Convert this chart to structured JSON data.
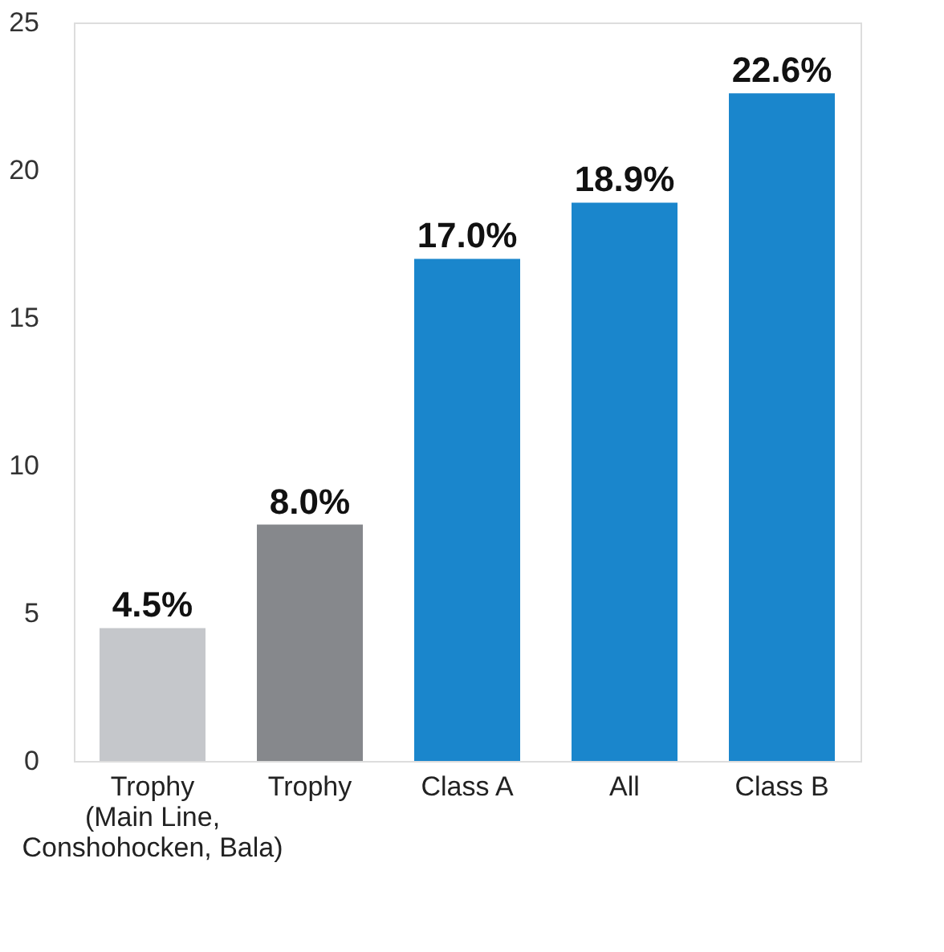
{
  "chart_data": {
    "type": "bar",
    "categories": [
      "Trophy\n(Main Line,\nConshohocken, Bala)",
      "Trophy",
      "Class A",
      "All",
      "Class B"
    ],
    "values": [
      4.5,
      8.0,
      17.0,
      18.9,
      22.6
    ],
    "colors": [
      "#c5c7cb",
      "#86888c",
      "#1a86cc",
      "#1a86cc",
      "#1a86cc"
    ],
    "value_labels": [
      "4.5%",
      "8.0%",
      "17.0%",
      "18.9%",
      "22.6%"
    ],
    "ylim": [
      0,
      25
    ],
    "yticks": [
      0,
      5,
      10,
      15,
      20,
      25
    ],
    "grid": false
  }
}
